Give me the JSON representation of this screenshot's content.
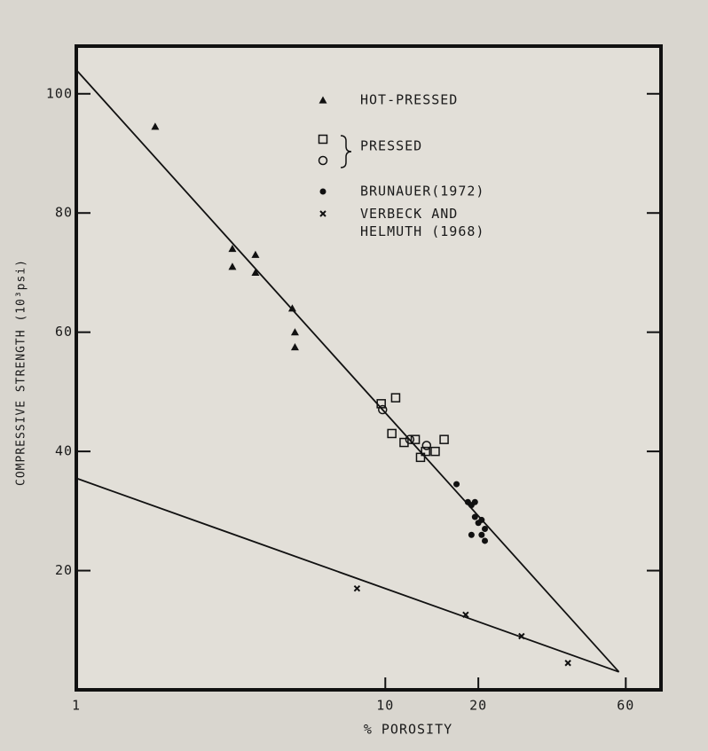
{
  "chart_data": {
    "type": "scatter",
    "xlabel": "% POROSITY",
    "ylabel": "COMPRESSIVE STRENGTH (10³psi)",
    "xscale": "log",
    "xlim": [
      1,
      78
    ],
    "ylim": [
      0,
      108
    ],
    "xticks": [
      1,
      10,
      20,
      60
    ],
    "yticks": [
      20,
      40,
      60,
      80,
      100
    ],
    "series": [
      {
        "name": "HOT-PRESSED",
        "marker": "triangle",
        "color": "#111111",
        "x": [
          1.8,
          3.2,
          3.2,
          3.8,
          3.8,
          5.0,
          5.1,
          5.1
        ],
        "values": [
          94.5,
          74,
          71,
          73,
          70,
          64,
          60,
          57.5
        ]
      },
      {
        "name": "PRESSED",
        "marker": "square",
        "color": "#111111",
        "x": [
          10.8,
          9.7,
          10.5,
          11.5,
          12.5,
          13.5,
          14.5,
          15.5,
          13
        ],
        "values": [
          49,
          48,
          43,
          41.5,
          42,
          40,
          40,
          42,
          39
        ]
      },
      {
        "marker": "circle",
        "color": "#111111",
        "x": [
          9.8,
          12,
          13.6
        ],
        "values": [
          47,
          42,
          41
        ]
      },
      {
        "name": "BRUNAUER(1972)",
        "marker": "dot",
        "color": "#111111",
        "x": [
          17,
          18.5,
          19,
          19.5,
          19.5,
          20,
          19,
          20.5,
          21,
          21,
          20.5
        ],
        "values": [
          34.5,
          31.5,
          31,
          31.5,
          29,
          28,
          26,
          26,
          25,
          27,
          28.5
        ]
      },
      {
        "name": "VERBECK AND\nHELMUTH (1968)",
        "marker": "x",
        "color": "#111111",
        "x": [
          8.1,
          18.2,
          27.6,
          39
        ],
        "values": [
          17,
          12.6,
          9,
          4.5
        ]
      }
    ],
    "lines": [
      {
        "x": [
          1,
          57
        ],
        "values": [
          104,
          3
        ]
      },
      {
        "x": [
          1,
          57
        ],
        "values": [
          35.5,
          3
        ]
      }
    ]
  }
}
